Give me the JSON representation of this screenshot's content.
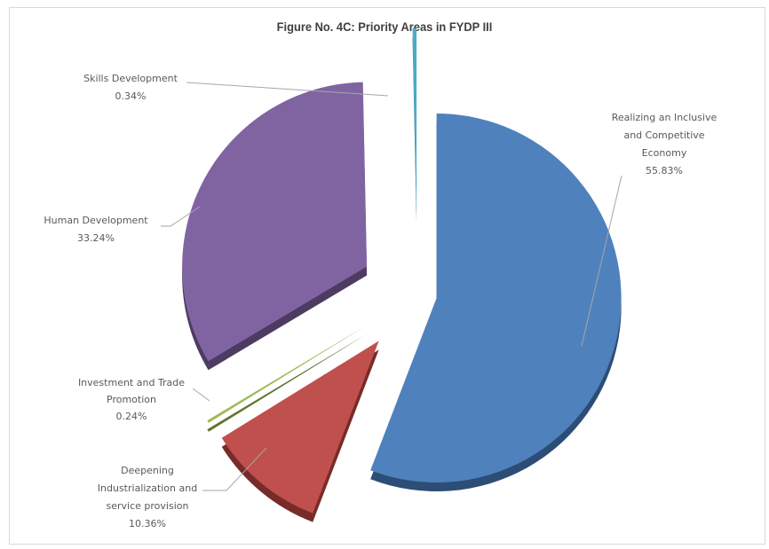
{
  "chart_data": {
    "type": "pie",
    "title": "Figure No. 4C: Priority Areas in FYDP III",
    "slices": [
      {
        "label": "Realizing an Inclusive and Competitive Economy",
        "value": 55.83,
        "value_label": "55.83%",
        "color": "#4f81bd",
        "shadow": "#2c4d75"
      },
      {
        "label": "Deepening Industrialization and service provision",
        "value": 10.36,
        "value_label": "10.36%",
        "color": "#c0504d",
        "shadow": "#772c2a"
      },
      {
        "label": "Investment and Trade Promotion",
        "value": 0.24,
        "value_label": "0.24%",
        "color": "#9bbb59",
        "shadow": "#5f7530"
      },
      {
        "label": "Human Development",
        "value": 33.24,
        "value_label": "33.24%",
        "color": "#8064a2",
        "shadow": "#4d3b62"
      },
      {
        "label": "Skills Development",
        "value": 0.34,
        "value_label": "0.34%",
        "color": "#4bacc6",
        "shadow": "#276a7c"
      }
    ],
    "legend": "none",
    "style": "3d-exploded"
  }
}
